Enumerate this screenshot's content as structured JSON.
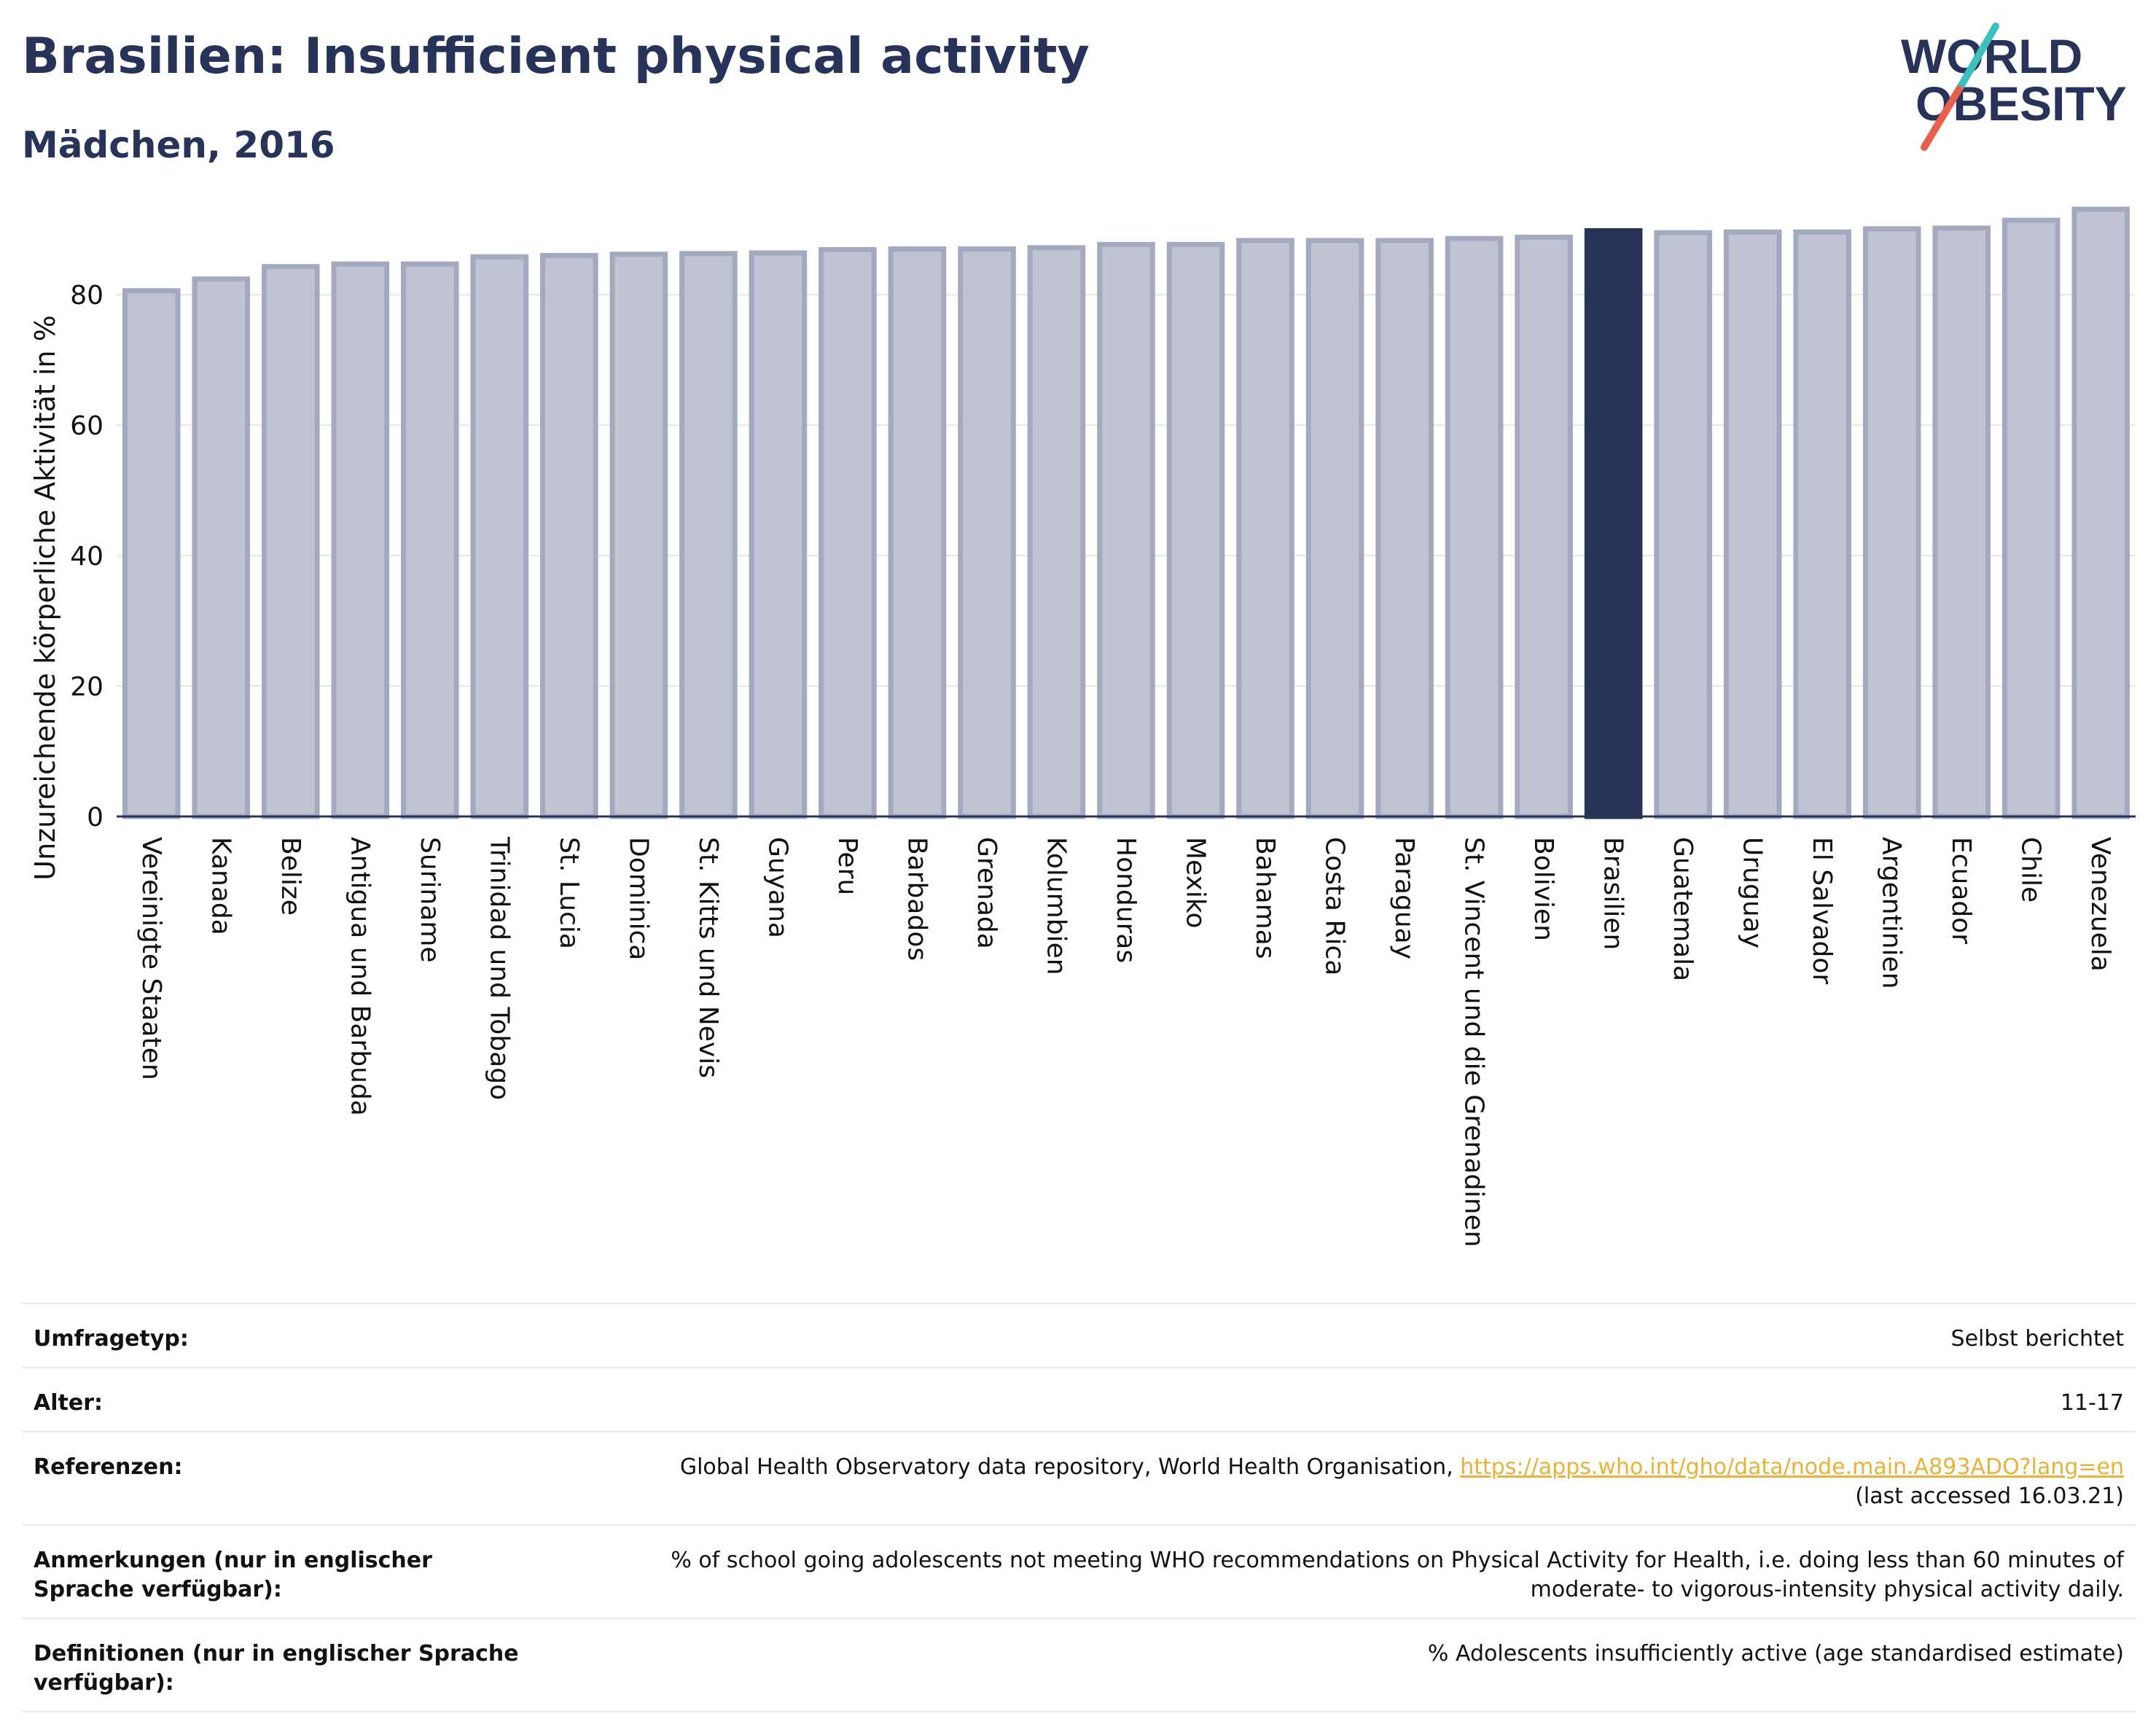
{
  "header": {
    "title": "Brasilien: Insufficient physical activity",
    "subtitle": "Mädchen, 2016"
  },
  "logo": {
    "line1": "WORLD",
    "line2": "OBESITY",
    "colors": {
      "text": "#283359",
      "slash_top": "#3bbfbf",
      "slash_bottom": "#e8604c"
    }
  },
  "colors": {
    "bar_fill": "#c0c4d2",
    "bar_stroke": "#a3a9bf",
    "highlight": "#283359",
    "grid": "#e6e6e6",
    "axis": "#283359",
    "link": "#e8b23a"
  },
  "chart_data": {
    "type": "bar",
    "ylabel": "Unzureichende körperliche Aktivität in %",
    "ylim": [
      0,
      95
    ],
    "yticks": [
      0,
      20,
      40,
      60,
      80
    ],
    "grid": true,
    "highlight_category": "Brasilien",
    "categories": [
      "Vereinigte Staaten",
      "Kanada",
      "Belize",
      "Antigua und Barbuda",
      "Suriname",
      "Trinidad und Tobago",
      "St. Lucia",
      "Dominica",
      "St. Kitts und Nevis",
      "Guyana",
      "Peru",
      "Barbados",
      "Grenada",
      "Kolumbien",
      "Honduras",
      "Mexiko",
      "Bahamas",
      "Costa Rica",
      "Paraguay",
      "St. Vincent und die Grenadinen",
      "Bolivien",
      "Brasilien",
      "Guatemala",
      "Uruguay",
      "El Salvador",
      "Argentinien",
      "Ecuador",
      "Chile",
      "Venezuela"
    ],
    "values": [
      80.6,
      82.4,
      84.3,
      84.7,
      84.7,
      85.8,
      86.0,
      86.2,
      86.3,
      86.4,
      86.9,
      87.0,
      87.0,
      87.2,
      87.7,
      87.7,
      88.3,
      88.3,
      88.3,
      88.6,
      88.8,
      89.8,
      89.5,
      89.6,
      89.6,
      90.1,
      90.2,
      91.4,
      93.1
    ]
  },
  "info": {
    "rows": [
      {
        "label": "Umfragetyp:",
        "value": "Selbst berichtet"
      },
      {
        "label": "Alter:",
        "value": "11-17"
      },
      {
        "label": "Referenzen:",
        "value_pre": "Global Health Observatory data repository, World Health Organisation, ",
        "link": "https://apps.who.int/gho/data/node.main.A893ADO?lang=en",
        "value_post": "(last accessed 16.03.21)"
      },
      {
        "label": "Anmerkungen (nur in englischer Sprache verfügbar):",
        "value": "% of school going adolescents not meeting WHO recommendations on Physical Activity for Health, i.e. doing less than 60 minutes of moderate- to vigorous-intensity physical activity daily."
      },
      {
        "label": "Definitionen (nur in englischer Sprache verfügbar):",
        "value": "% Adolescents insufficiently active (age standardised estimate)"
      }
    ]
  }
}
